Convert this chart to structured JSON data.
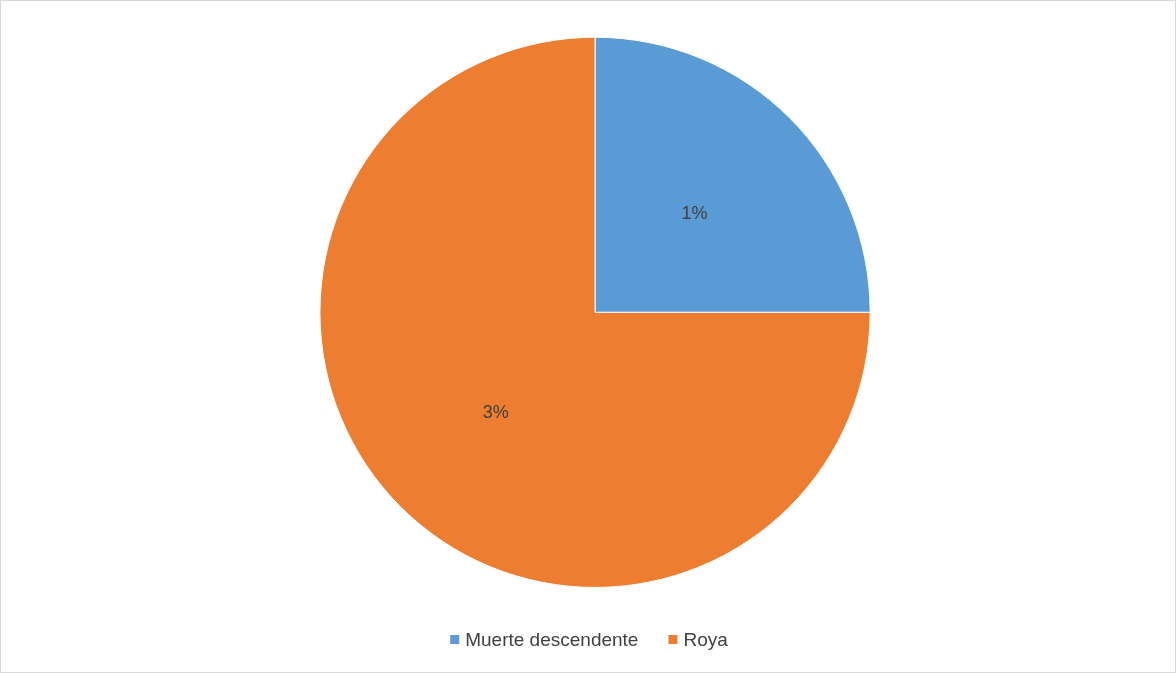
{
  "chart_data": {
    "type": "pie",
    "categories": [
      "Muerte descendente",
      "Roya"
    ],
    "values": [
      1,
      3
    ],
    "value_labels": [
      "1%",
      "3%"
    ],
    "colors": [
      "#5b9bd5",
      "#ed7d31"
    ],
    "legend": "bottom"
  }
}
